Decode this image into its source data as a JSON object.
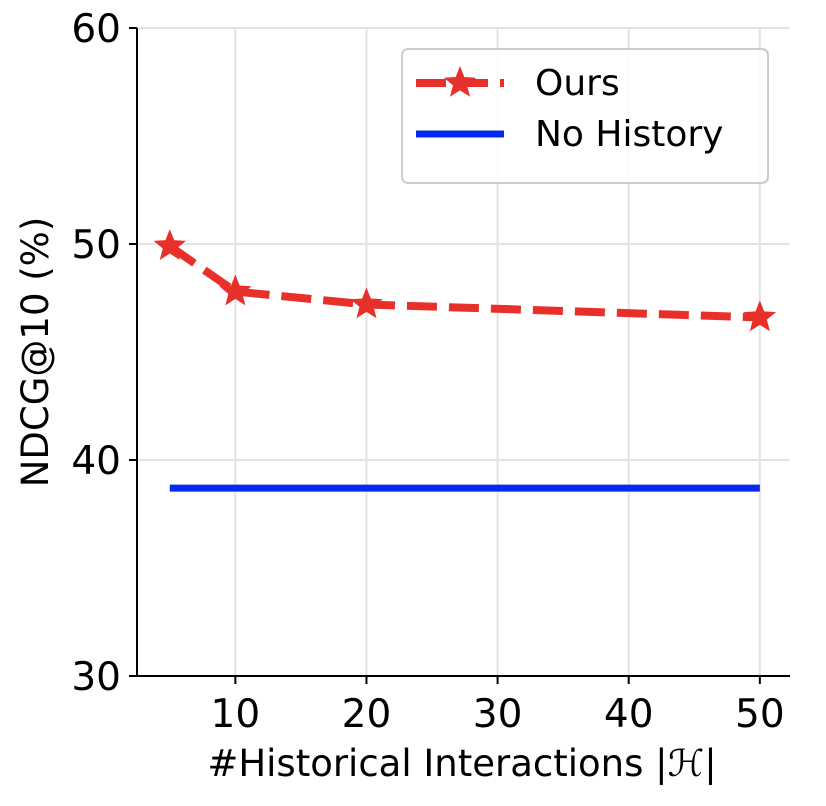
{
  "chart_data": {
    "type": "line",
    "xlabel": "#Historical Interactions |ℋ|",
    "ylabel": "NDCG@10 (%)",
    "xlim": [
      2.5,
      52.3
    ],
    "ylim": [
      30,
      60
    ],
    "x_ticks": [
      "10",
      "20",
      "30",
      "40",
      "50"
    ],
    "y_ticks": [
      "30",
      "40",
      "50",
      "60"
    ],
    "grid": true,
    "legend_position": "top-right",
    "series": [
      {
        "name": "Ours",
        "style": "dashed-star",
        "color": "#e8302a",
        "x": [
          5,
          10,
          20,
          50
        ],
        "y": [
          49.9,
          47.8,
          47.2,
          46.6
        ]
      },
      {
        "name": "No History",
        "style": "solid",
        "color": "#0528f0",
        "x": [
          5,
          50
        ],
        "y": [
          38.7,
          38.7
        ]
      }
    ]
  }
}
